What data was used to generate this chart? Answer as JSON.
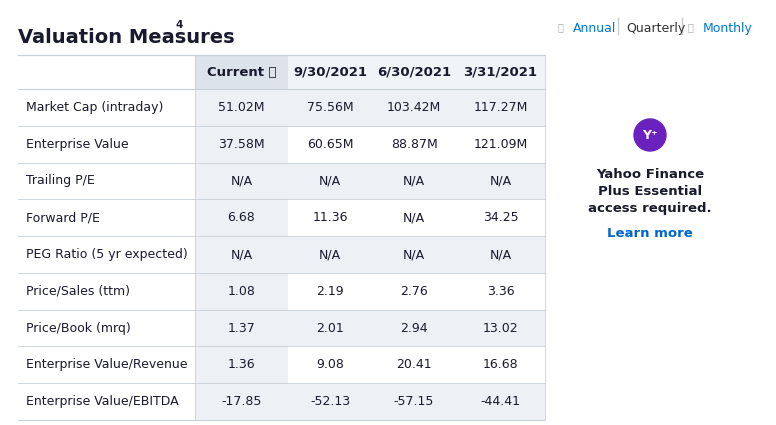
{
  "title": "Valuation Measures",
  "title_superscript": "4",
  "nav_items": [
    "Annual",
    "Quarterly",
    "Monthly"
  ],
  "nav_active": "Quarterly",
  "nav_annual_color": "#0078d4",
  "nav_quarterly_color": "#333333",
  "nav_monthly_color": "#0078d4",
  "columns": [
    "",
    "Current",
    "9/30/2021",
    "6/30/2021",
    "3/31/2021"
  ],
  "rows": [
    [
      "Market Cap (intraday)",
      "51.02M",
      "75.56M",
      "103.42M",
      "117.27M"
    ],
    [
      "Enterprise Value",
      "37.58M",
      "60.65M",
      "88.87M",
      "121.09M"
    ],
    [
      "Trailing P/E",
      "N/A",
      "N/A",
      "N/A",
      "N/A"
    ],
    [
      "Forward P/E",
      "6.68",
      "11.36",
      "N/A",
      "34.25"
    ],
    [
      "PEG Ratio (5 yr expected)",
      "N/A",
      "N/A",
      "N/A",
      "N/A"
    ],
    [
      "Price/Sales (ttm)",
      "1.08",
      "2.19",
      "2.76",
      "3.36"
    ],
    [
      "Price/Book (mrq)",
      "1.37",
      "2.01",
      "2.94",
      "13.02"
    ],
    [
      "Enterprise Value/Revenue",
      "1.36",
      "9.08",
      "20.41",
      "16.68"
    ],
    [
      "Enterprise Value/EBITDA",
      "-17.85",
      "-52.13",
      "-57.15",
      "-44.41"
    ]
  ],
  "sidebar_icon_color": "#6B21BE",
  "sidebar_title_line1": "Yahoo Finance",
  "sidebar_title_line2": "Plus Essential",
  "sidebar_title_line3": "access required.",
  "sidebar_link": "Learn more",
  "sidebar_link_color": "#0066cc",
  "bg_color": "#ffffff",
  "header_bg_current": "#dde3ea",
  "header_bg_other": "#f0f4f8",
  "row_shaded": "#edf1f5",
  "row_white": "#ffffff",
  "border_color": "#c8d0d8",
  "title_color": "#1a1a2e",
  "label_color": "#1a1a2e",
  "value_color": "#1a1a2e",
  "title_fontsize": 14,
  "header_fontsize": 9.5,
  "cell_fontsize": 9,
  "nav_fontsize": 9
}
